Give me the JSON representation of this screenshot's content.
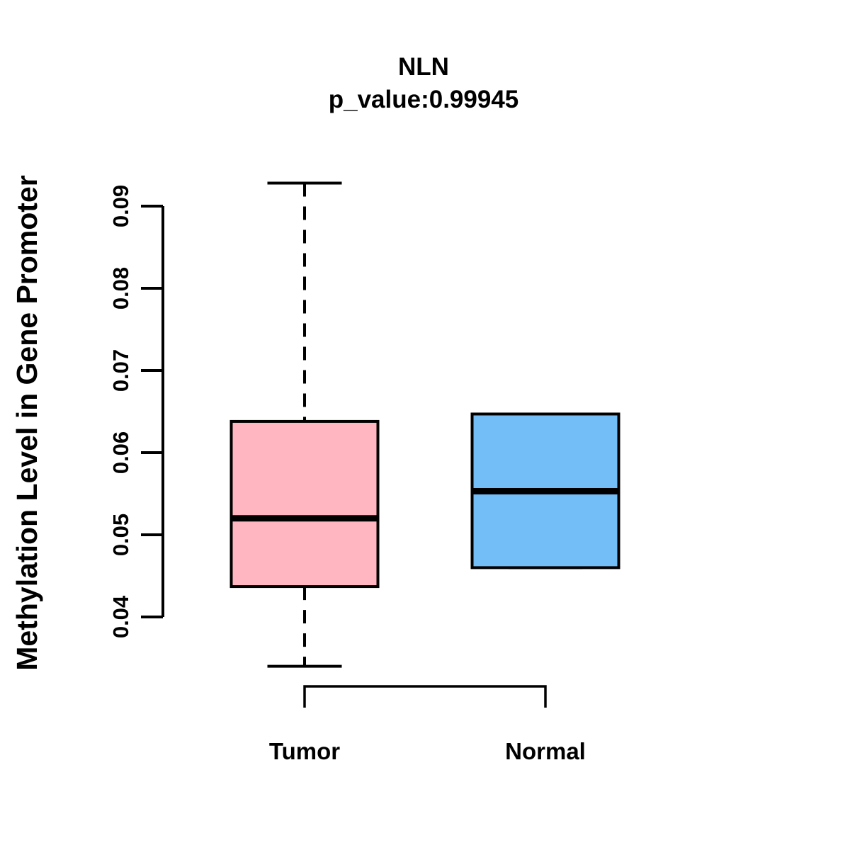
{
  "chart_data": {
    "type": "boxplot",
    "title": "NLN",
    "subtitle": "p_value:0.99945",
    "ylabel": "Methylation Level in Gene Promoter",
    "categories": [
      "Tumor",
      "Normal"
    ],
    "ylim": [
      0.034,
      0.093
    ],
    "yticks": [
      0.04,
      0.05,
      0.06,
      0.07,
      0.08,
      0.09
    ],
    "ytick_labels": [
      "0.04",
      "0.05",
      "0.06",
      "0.07",
      "0.08",
      "0.09"
    ],
    "grid": false,
    "legend": "none",
    "series": [
      {
        "name": "Tumor",
        "color": "#FFB6C1",
        "whisker_low": 0.034,
        "q1": 0.0437,
        "median": 0.052,
        "q3": 0.0638,
        "whisker_high": 0.0928
      },
      {
        "name": "Normal",
        "color": "#73BEF7",
        "whisker_low": 0.046,
        "q1": 0.046,
        "median": 0.0553,
        "q3": 0.0647,
        "whisker_high": 0.0647
      }
    ],
    "colors": {
      "box_border": "#000000",
      "axis": "#000000",
      "text": "#000000",
      "background": "#FFFFFF"
    }
  }
}
